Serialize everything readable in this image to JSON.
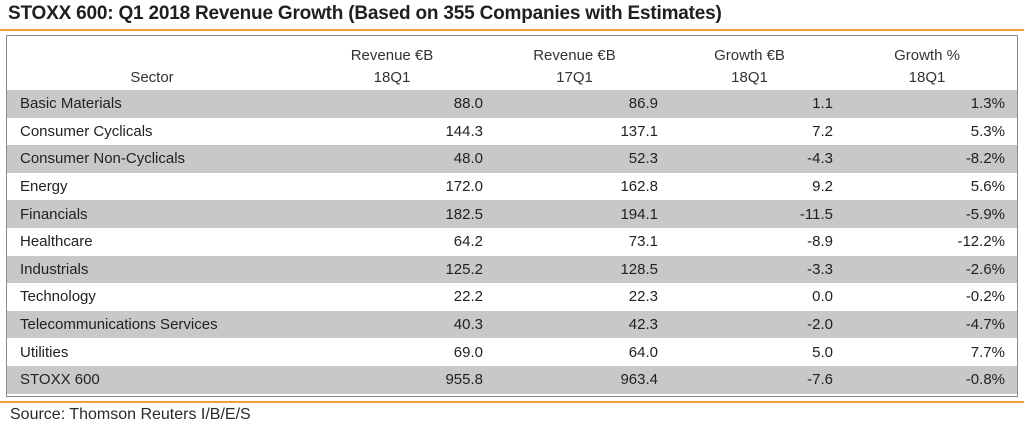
{
  "title": "STOXX 600: Q1 2018 Revenue Growth (Based on 355 Companies with Estimates)",
  "source": "Source: Thomson Reuters I/B/E/S",
  "colors": {
    "accent_rule": "#f0a030",
    "row_shade": "#c8c8c8",
    "frame": "#8a8a8a"
  },
  "table": {
    "headers": {
      "sector": "Sector",
      "cols": [
        {
          "line1": "Revenue €B",
          "line2": "18Q1"
        },
        {
          "line1": "Revenue €B",
          "line2": "17Q1"
        },
        {
          "line1": "Growth €B",
          "line2": "18Q1"
        },
        {
          "line1": "Growth %",
          "line2": "18Q1"
        }
      ]
    },
    "rows": [
      {
        "sector": "Basic Materials",
        "rev18": "88.0",
        "rev17": "86.9",
        "growth": "1.1",
        "pct": "1.3%"
      },
      {
        "sector": "Consumer Cyclicals",
        "rev18": "144.3",
        "rev17": "137.1",
        "growth": "7.2",
        "pct": "5.3%"
      },
      {
        "sector": "Consumer Non-Cyclicals",
        "rev18": "48.0",
        "rev17": "52.3",
        "growth": "-4.3",
        "pct": "-8.2%"
      },
      {
        "sector": "Energy",
        "rev18": "172.0",
        "rev17": "162.8",
        "growth": "9.2",
        "pct": "5.6%"
      },
      {
        "sector": "Financials",
        "rev18": "182.5",
        "rev17": "194.1",
        "growth": "-11.5",
        "pct": "-5.9%"
      },
      {
        "sector": "Healthcare",
        "rev18": "64.2",
        "rev17": "73.1",
        "growth": "-8.9",
        "pct": "-12.2%"
      },
      {
        "sector": "Industrials",
        "rev18": "125.2",
        "rev17": "128.5",
        "growth": "-3.3",
        "pct": "-2.6%"
      },
      {
        "sector": "Technology",
        "rev18": "22.2",
        "rev17": "22.3",
        "growth": "0.0",
        "pct": "-0.2%"
      },
      {
        "sector": "Telecommunications Services",
        "rev18": "40.3",
        "rev17": "42.3",
        "growth": "-2.0",
        "pct": "-4.7%"
      },
      {
        "sector": "Utilities",
        "rev18": "69.0",
        "rev17": "64.0",
        "growth": "5.0",
        "pct": "7.7%"
      }
    ],
    "total": {
      "sector": "STOXX 600",
      "rev18": "955.8",
      "rev17": "963.4",
      "growth": "-7.6",
      "pct": "-0.8%"
    }
  }
}
